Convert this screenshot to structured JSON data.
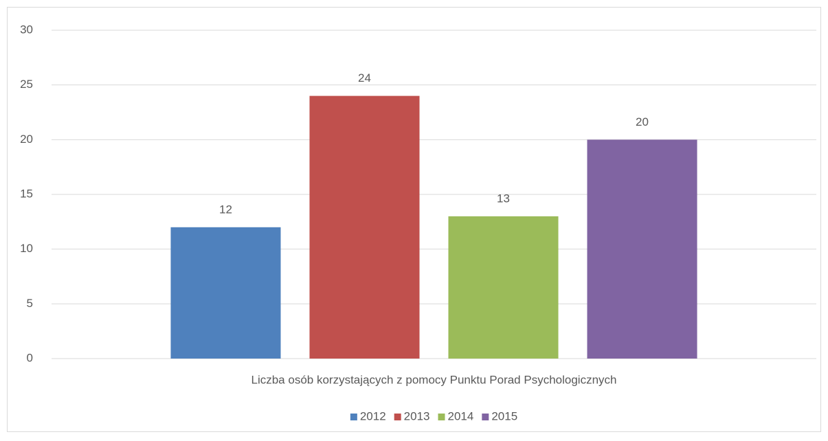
{
  "chart_data": {
    "type": "bar",
    "categories": [
      "Liczba osób korzystających z pomocy Punktu Porad Psychologicznych"
    ],
    "series": [
      {
        "name": "2012",
        "color": "#4f81bd",
        "values": [
          12
        ]
      },
      {
        "name": "2013",
        "color": "#c0504d",
        "values": [
          24
        ]
      },
      {
        "name": "2014",
        "color": "#9bbb59",
        "values": [
          13
        ]
      },
      {
        "name": "2015",
        "color": "#8064a2",
        "values": [
          20
        ]
      }
    ],
    "ylim": [
      0,
      30
    ],
    "yticks": [
      0,
      5,
      10,
      15,
      20,
      25,
      30
    ],
    "grid": true,
    "legend": "bottom"
  }
}
